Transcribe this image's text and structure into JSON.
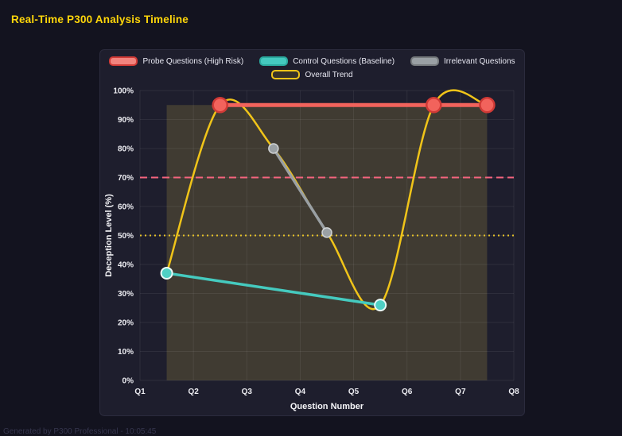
{
  "page": {
    "title": "Real-Time P300 Analysis Timeline",
    "footer": "Generated by P300 Professional - 10:05:45"
  },
  "colors": {
    "background": "#13131f",
    "panel": "#1e1e2d",
    "title": "#ffd60a",
    "grid": "rgba(255,255,255,0.07)",
    "tick_text": "#ededf2",
    "axis_title": "#f5f5f8"
  },
  "chart_data": {
    "type": "line",
    "title": "Real-Time P300 Analysis Timeline",
    "xlabel": "Question Number",
    "ylabel": "Deception Level (%)",
    "x_tick_labels": [
      "Q1",
      "Q2",
      "Q3",
      "Q4",
      "Q5",
      "Q6",
      "Q7",
      "Q8"
    ],
    "y_tick_labels": [
      "0%",
      "10%",
      "20%",
      "30%",
      "40%",
      "50%",
      "60%",
      "70%",
      "80%",
      "90%",
      "100%"
    ],
    "xlim": [
      1,
      8
    ],
    "ylim": [
      0,
      100
    ],
    "grid": true,
    "legend_position": "top",
    "series": [
      {
        "name": "Probe Questions (High Risk)",
        "type": "line",
        "color": "#f2635c",
        "swatch_fill": "#f2847e",
        "swatch_border": "#d03a36",
        "line_width": 5,
        "marker": {
          "r": 9,
          "fill": "#f2635c",
          "stroke": "#d03a36",
          "stroke_width": 2.5
        },
        "x": [
          2.5,
          6.5,
          7.5
        ],
        "y": [
          95,
          95,
          95
        ]
      },
      {
        "name": "Control Questions (Baseline)",
        "type": "line",
        "color": "#45cabf",
        "swatch_fill": "#45cabf",
        "swatch_border": "#2ba99e",
        "line_width": 3.5,
        "marker": {
          "r": 7,
          "fill": "#4fd0c5",
          "stroke": "#eafaf8",
          "stroke_width": 2
        },
        "x": [
          1.5,
          5.5
        ],
        "y": [
          37,
          26
        ]
      },
      {
        "name": "Irrelevant Questions",
        "type": "line",
        "color": "#9aa0a4",
        "swatch_fill": "#9aa0a4",
        "swatch_border": "#75797c",
        "line_width": 3.5,
        "marker": {
          "r": 6,
          "fill": "#9aa0a4",
          "stroke": "#d0d3d5",
          "stroke_width": 1.5
        },
        "x": [
          3.5,
          4.5
        ],
        "y": [
          80,
          51
        ]
      },
      {
        "name": "Overall Trend",
        "type": "spline",
        "color": "#f0c419",
        "swatch_fill": "rgba(240,196,25,0.12)",
        "swatch_border": "#f0c419",
        "line_width": 2.5,
        "marker": null,
        "x": [
          1.5,
          2.5,
          3.5,
          4.5,
          5.5,
          6.5,
          7.5
        ],
        "y": [
          37,
          95,
          80,
          51,
          26,
          95,
          95
        ]
      }
    ],
    "thresholds": [
      {
        "y": 70,
        "color": "#f5647e",
        "dash": "9 5",
        "width": 2
      },
      {
        "y": 50,
        "color": "#e6c229",
        "dash": "2 4",
        "width": 2
      }
    ],
    "shaded_region": {
      "x0": 1.5,
      "x1": 7.5,
      "y0": 0,
      "y1": 95,
      "fill": "rgba(235,210,80,0.17)"
    }
  }
}
